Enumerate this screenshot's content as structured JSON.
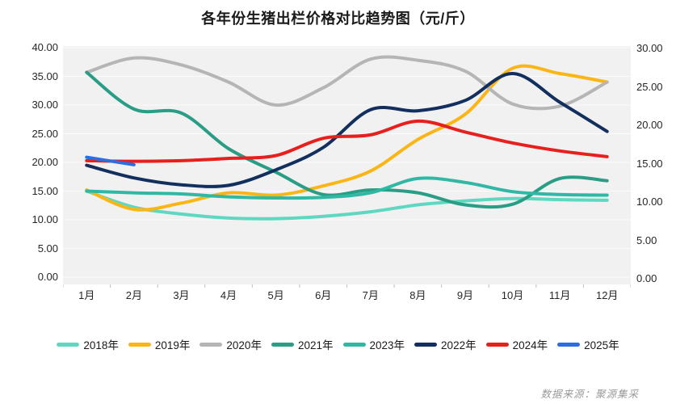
{
  "title": "各年份生猪出栏价格对比趋势图（元/斤）",
  "source": "数据来源：聚源集采",
  "chart_data": {
    "type": "line",
    "title": "各年份生猪出栏价格对比趋势图（元/斤）",
    "categories": [
      "1月",
      "2月",
      "3月",
      "4月",
      "5月",
      "6月",
      "7月",
      "8月",
      "9月",
      "10月",
      "11月",
      "12月"
    ],
    "left_axis": {
      "min": 0,
      "max": 40,
      "ticks": [
        "40.00",
        "35.00",
        "30.00",
        "25.00",
        "20.00",
        "15.00",
        "10.00",
        "5.00",
        "0.00"
      ]
    },
    "right_axis": {
      "min": 0,
      "max": 30,
      "ticks": [
        "30.00",
        "25.00",
        "20.00",
        "15.00",
        "10.00",
        "5.00",
        "0.00"
      ]
    },
    "grid": true,
    "legend_position": "bottom",
    "series": [
      {
        "name": "2018年",
        "color": "#5fd8c1",
        "values": [
          15.0,
          12.2,
          11.0,
          10.3,
          10.2,
          10.6,
          11.4,
          12.6,
          13.3,
          13.7,
          13.5,
          13.4
        ]
      },
      {
        "name": "2019年",
        "color": "#fbb616",
        "values": [
          15.2,
          11.8,
          12.9,
          14.7,
          14.3,
          15.9,
          18.5,
          24.0,
          28.4,
          36.4,
          35.5,
          34.0
        ]
      },
      {
        "name": "2020年",
        "color": "#b5b5b5",
        "values": [
          35.7,
          38.2,
          37.0,
          34.0,
          30.0,
          33.0,
          38.0,
          37.8,
          35.9,
          30.2,
          29.8,
          34.0
        ]
      },
      {
        "name": "2021年",
        "color": "#2a9d85",
        "values": [
          35.7,
          29.3,
          28.6,
          22.4,
          18.3,
          14.4,
          15.2,
          14.7,
          12.6,
          12.7,
          17.2,
          16.8
        ]
      },
      {
        "name": "2023年",
        "color": "#2fb9a4",
        "values": [
          15.0,
          14.7,
          14.5,
          14.0,
          13.8,
          13.9,
          14.7,
          17.2,
          16.5,
          14.9,
          14.4,
          14.3
        ]
      },
      {
        "name": "2022年",
        "color": "#132f5e",
        "values": [
          19.5,
          17.3,
          16.1,
          16.0,
          18.7,
          22.6,
          29.2,
          29.0,
          30.8,
          35.5,
          30.5,
          25.4
        ]
      },
      {
        "name": "2024年",
        "color": "#e8201d",
        "values": [
          20.3,
          20.2,
          20.3,
          20.7,
          21.2,
          24.2,
          24.8,
          27.2,
          25.3,
          23.4,
          22.0,
          21.0
        ]
      },
      {
        "name": "2025年",
        "color": "#2a6fdf",
        "values": [
          20.9,
          19.6
        ]
      }
    ],
    "style": {
      "plot_bg": "#f1f1f2",
      "gridline": "#ffffff",
      "tick": "#bfbfbf",
      "line_width": 4
    }
  }
}
